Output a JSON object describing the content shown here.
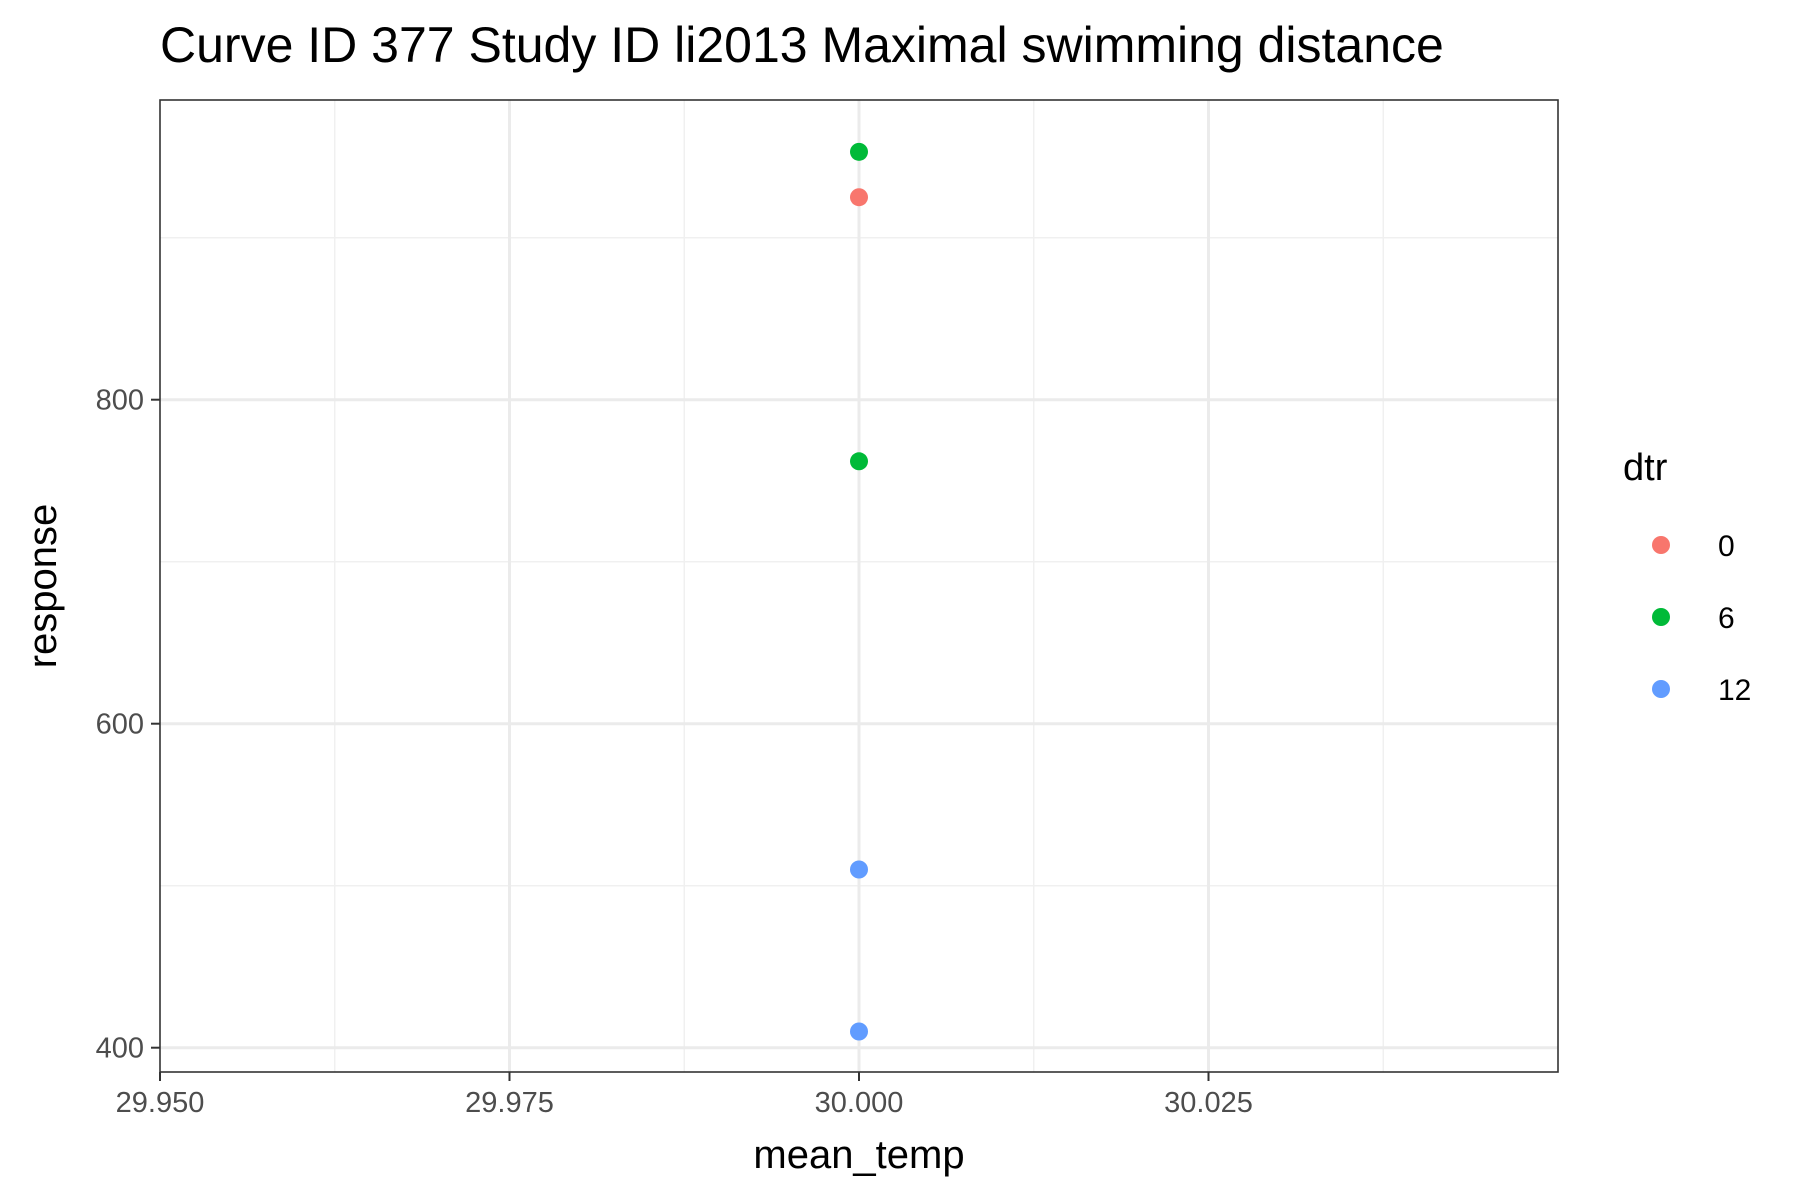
{
  "chart_data": {
    "type": "scatter",
    "title": "Curve ID 377 Study ID li2013 Maximal swimming distance",
    "xlabel": "mean_temp",
    "ylabel": "response",
    "xlim": [
      29.95,
      30.05
    ],
    "ylim": [
      385,
      985
    ],
    "x_ticks": [
      29.95,
      29.975,
      30.0,
      30.025
    ],
    "x_tick_labels": [
      "29.950",
      "29.975",
      "30.000",
      "30.025"
    ],
    "y_ticks": [
      400,
      600,
      800
    ],
    "y_tick_labels": [
      "400",
      "600",
      "800"
    ],
    "grid": true,
    "legend": {
      "title": "dtr",
      "position": "right",
      "entries": [
        {
          "label": "0",
          "color": "#F8766D"
        },
        {
          "label": "6",
          "color": "#00BA38"
        },
        {
          "label": "12",
          "color": "#619CFF"
        }
      ]
    },
    "series": [
      {
        "name": "0",
        "color": "#F8766D",
        "points": [
          {
            "x": 30.0,
            "y": 925
          }
        ]
      },
      {
        "name": "6",
        "color": "#00BA38",
        "points": [
          {
            "x": 30.0,
            "y": 953
          },
          {
            "x": 30.0,
            "y": 762
          }
        ]
      },
      {
        "name": "12",
        "color": "#619CFF",
        "points": [
          {
            "x": 30.0,
            "y": 510
          },
          {
            "x": 30.0,
            "y": 410
          }
        ]
      }
    ]
  }
}
